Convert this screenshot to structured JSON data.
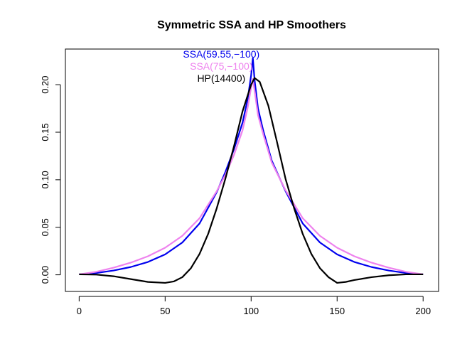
{
  "chart_data": {
    "type": "line",
    "title": "Symmetric SSA and HP Smoothers",
    "xlabel": "",
    "ylabel": "",
    "xlim": [
      -8,
      209
    ],
    "ylim": [
      -0.0175,
      0.2375
    ],
    "xticks": [
      0,
      50,
      100,
      150,
      200
    ],
    "yticks": [
      0.0,
      0.05,
      0.1,
      0.15,
      0.2
    ],
    "xtick_labels": [
      "0",
      "50",
      "100",
      "150",
      "200"
    ],
    "ytick_labels": [
      "0.00",
      "0.05",
      "0.10",
      "0.15",
      "0.20"
    ],
    "grid": false,
    "legend_position": "top-center",
    "series": [
      {
        "name": "SSA(59.55,−100)",
        "color": "#0000ee",
        "x": [
          0,
          10,
          20,
          30,
          40,
          50,
          60,
          70,
          80,
          85,
          90,
          95,
          98,
          100,
          101,
          102,
          104,
          107,
          112,
          120,
          130,
          140,
          150,
          160,
          170,
          180,
          190,
          200
        ],
        "y": [
          0.0005,
          0.0019,
          0.0045,
          0.0082,
          0.0135,
          0.0215,
          0.034,
          0.054,
          0.087,
          0.108,
          0.132,
          0.16,
          0.185,
          0.21,
          0.228,
          0.205,
          0.175,
          0.152,
          0.12,
          0.088,
          0.054,
          0.034,
          0.0215,
          0.0135,
          0.0082,
          0.0045,
          0.0019,
          0.0005
        ]
      },
      {
        "name": "SSA(75,−100)",
        "color": "#ee82ee",
        "x": [
          0,
          10,
          20,
          30,
          40,
          50,
          60,
          70,
          80,
          85,
          90,
          95,
          98,
          100,
          101,
          102,
          104,
          107,
          112,
          120,
          130,
          140,
          150,
          160,
          170,
          180,
          190,
          200
        ],
        "y": [
          0.0005,
          0.0032,
          0.0075,
          0.0128,
          0.0195,
          0.0285,
          0.041,
          0.0595,
          0.088,
          0.105,
          0.126,
          0.152,
          0.176,
          0.197,
          0.206,
          0.194,
          0.168,
          0.148,
          0.118,
          0.089,
          0.0595,
          0.041,
          0.0285,
          0.0195,
          0.0128,
          0.0075,
          0.0032,
          0.0005
        ]
      },
      {
        "name": "HP(14400)",
        "color": "#000000",
        "x": [
          0,
          10,
          20,
          30,
          40,
          50,
          55,
          60,
          65,
          70,
          75,
          80,
          85,
          90,
          95,
          100,
          102,
          105,
          110,
          115,
          120,
          125,
          130,
          135,
          140,
          145,
          150,
          155,
          160,
          170,
          180,
          190,
          200
        ],
        "y": [
          0.0005,
          0.0002,
          -0.0015,
          -0.0045,
          -0.0075,
          -0.0085,
          -0.007,
          -0.0025,
          0.007,
          0.022,
          0.043,
          0.07,
          0.101,
          0.135,
          0.172,
          0.2,
          0.207,
          0.203,
          0.178,
          0.14,
          0.101,
          0.07,
          0.043,
          0.022,
          0.007,
          -0.0025,
          -0.0085,
          -0.0075,
          -0.0055,
          -0.0025,
          -0.0005,
          0.0005,
          0.0005
        ]
      }
    ]
  }
}
